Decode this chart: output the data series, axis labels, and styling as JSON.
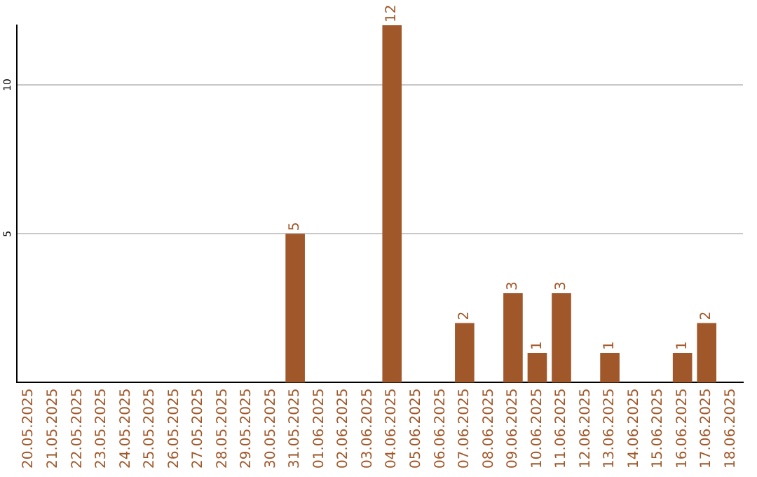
{
  "chart_data": {
    "type": "bar",
    "categories": [
      "20.05.2025",
      "21.05.2025",
      "22.05.2025",
      "23.05.2025",
      "24.05.2025",
      "25.05.2025",
      "26.05.2025",
      "27.05.2025",
      "28.05.2025",
      "29.05.2025",
      "30.05.2025",
      "31.05.2025",
      "01.06.2025",
      "02.06.2025",
      "03.06.2025",
      "04.06.2025",
      "05.06.2025",
      "06.06.2025",
      "07.06.2025",
      "08.06.2025",
      "09.06.2025",
      "10.06.2025",
      "11.06.2025",
      "12.06.2025",
      "13.06.2025",
      "14.06.2025",
      "15.06.2025",
      "16.06.2025",
      "17.06.2025",
      "18.06.2025"
    ],
    "values": [
      0,
      0,
      0,
      0,
      0,
      0,
      0,
      0,
      0,
      0,
      0,
      5,
      0,
      0,
      0,
      12,
      0,
      0,
      2,
      0,
      3,
      1,
      3,
      0,
      1,
      0,
      0,
      1,
      2,
      0
    ],
    "value_labels": [
      null,
      null,
      null,
      null,
      null,
      null,
      null,
      null,
      null,
      null,
      null,
      "5",
      null,
      null,
      null,
      "12",
      null,
      null,
      "2",
      null,
      "3",
      "1",
      "3",
      null,
      "1",
      null,
      null,
      "1",
      "2",
      null
    ],
    "color": "#a0582a",
    "ylim": [
      0,
      12
    ],
    "yticks": [
      5,
      10
    ],
    "grid": "y"
  }
}
